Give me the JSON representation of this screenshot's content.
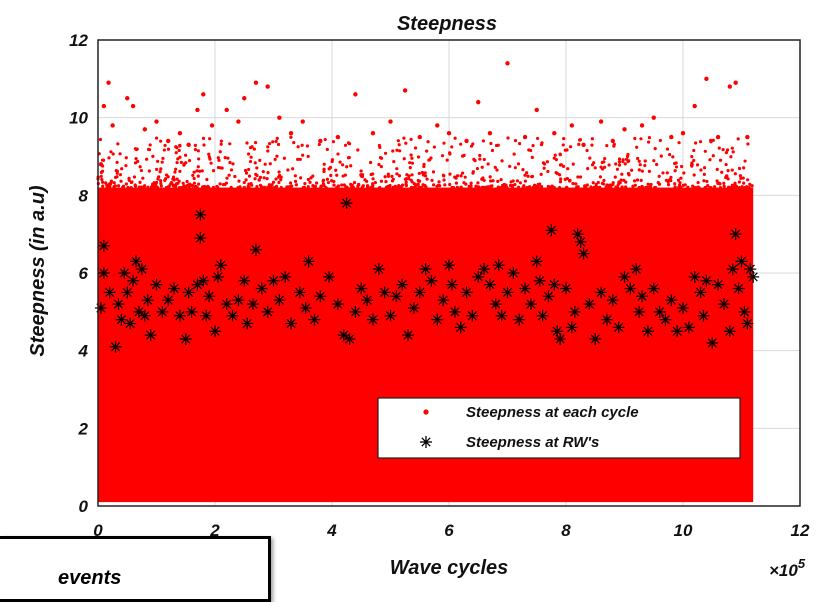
{
  "chart_data": {
    "type": "scatter",
    "title": "Steepness",
    "xlabel": "Wave cycles",
    "ylabel": "Steepness (in a.u)",
    "x_multiplier": "×10",
    "x_multiplier_exponent": "5",
    "xlim": [
      0,
      12
    ],
    "ylim": [
      0,
      12
    ],
    "xticks": [
      "0",
      "2",
      "4",
      "6",
      "8",
      "10",
      "12"
    ],
    "yticks": [
      "0",
      "2",
      "4",
      "6",
      "8",
      "10",
      "12"
    ],
    "grid": true,
    "legend_position": "bottom-right",
    "series": [
      {
        "name": "Steepness at each cycle",
        "marker": "dot",
        "color": "#ff0000",
        "band": {
          "x_from": 0,
          "x_to": 11.2,
          "y_from": 0.1,
          "y_to": 8.2
        },
        "values": [
          [
            0.05,
            8.8
          ],
          [
            0.1,
            10.3
          ],
          [
            0.18,
            10.9
          ],
          [
            0.25,
            9.8
          ],
          [
            0.5,
            10.5
          ],
          [
            0.6,
            10.3
          ],
          [
            0.8,
            9.7
          ],
          [
            1.0,
            9.9
          ],
          [
            1.2,
            9.4
          ],
          [
            1.4,
            9.6
          ],
          [
            1.55,
            9.3
          ],
          [
            1.7,
            10.2
          ],
          [
            1.8,
            10.6
          ],
          [
            1.95,
            9.8
          ],
          [
            2.2,
            10.2
          ],
          [
            2.4,
            9.9
          ],
          [
            2.5,
            10.5
          ],
          [
            2.7,
            10.9
          ],
          [
            2.9,
            10.8
          ],
          [
            3.1,
            10.0
          ],
          [
            3.3,
            9.6
          ],
          [
            3.5,
            9.9
          ],
          [
            3.8,
            9.4
          ],
          [
            4.1,
            9.5
          ],
          [
            4.4,
            10.6
          ],
          [
            4.7,
            9.6
          ],
          [
            5.0,
            9.9
          ],
          [
            5.25,
            10.7
          ],
          [
            5.5,
            9.5
          ],
          [
            5.8,
            9.8
          ],
          [
            6.0,
            9.6
          ],
          [
            6.3,
            9.4
          ],
          [
            6.5,
            10.4
          ],
          [
            6.7,
            9.6
          ],
          [
            7.0,
            11.4
          ],
          [
            7.3,
            9.5
          ],
          [
            7.5,
            10.2
          ],
          [
            7.8,
            9.6
          ],
          [
            8.1,
            9.8
          ],
          [
            8.3,
            9.3
          ],
          [
            8.6,
            9.9
          ],
          [
            8.8,
            9.4
          ],
          [
            9.0,
            9.7
          ],
          [
            9.3,
            9.8
          ],
          [
            9.5,
            10.0
          ],
          [
            9.8,
            9.5
          ],
          [
            10.0,
            9.6
          ],
          [
            10.2,
            10.3
          ],
          [
            10.4,
            11.0
          ],
          [
            10.6,
            9.5
          ],
          [
            10.8,
            10.8
          ],
          [
            10.9,
            10.9
          ],
          [
            11.1,
            9.5
          ]
        ]
      },
      {
        "name": "Steepness at RW's",
        "marker": "asterisk",
        "color": "#000000",
        "values": [
          [
            0.05,
            5.1
          ],
          [
            0.1,
            6.7
          ],
          [
            0.1,
            6.0
          ],
          [
            0.2,
            5.5
          ],
          [
            0.3,
            4.1
          ],
          [
            0.35,
            5.2
          ],
          [
            0.4,
            4.8
          ],
          [
            0.45,
            6.0
          ],
          [
            0.5,
            5.5
          ],
          [
            0.55,
            4.7
          ],
          [
            0.6,
            5.8
          ],
          [
            0.65,
            6.3
          ],
          [
            0.7,
            5.0
          ],
          [
            0.75,
            6.1
          ],
          [
            0.8,
            4.9
          ],
          [
            0.85,
            5.3
          ],
          [
            0.9,
            4.4
          ],
          [
            1.0,
            5.7
          ],
          [
            1.1,
            5.0
          ],
          [
            1.2,
            5.3
          ],
          [
            1.3,
            5.6
          ],
          [
            1.4,
            4.9
          ],
          [
            1.5,
            4.3
          ],
          [
            1.55,
            5.5
          ],
          [
            1.6,
            5.0
          ],
          [
            1.7,
            5.7
          ],
          [
            1.75,
            7.5
          ],
          [
            1.75,
            6.9
          ],
          [
            1.8,
            5.8
          ],
          [
            1.85,
            4.9
          ],
          [
            1.9,
            5.4
          ],
          [
            2.0,
            4.5
          ],
          [
            2.05,
            5.9
          ],
          [
            2.1,
            6.2
          ],
          [
            2.2,
            5.2
          ],
          [
            2.3,
            4.9
          ],
          [
            2.4,
            5.3
          ],
          [
            2.5,
            5.8
          ],
          [
            2.55,
            4.7
          ],
          [
            2.65,
            5.2
          ],
          [
            2.7,
            6.6
          ],
          [
            2.8,
            5.6
          ],
          [
            2.9,
            5.0
          ],
          [
            3.0,
            5.8
          ],
          [
            3.1,
            5.3
          ],
          [
            3.2,
            5.9
          ],
          [
            3.3,
            4.7
          ],
          [
            3.45,
            5.5
          ],
          [
            3.55,
            5.1
          ],
          [
            3.6,
            6.3
          ],
          [
            3.7,
            4.8
          ],
          [
            3.8,
            5.4
          ],
          [
            3.95,
            5.9
          ],
          [
            4.1,
            5.2
          ],
          [
            4.2,
            4.4
          ],
          [
            4.25,
            7.8
          ],
          [
            4.3,
            4.3
          ],
          [
            4.4,
            5.0
          ],
          [
            4.5,
            5.6
          ],
          [
            4.6,
            5.3
          ],
          [
            4.7,
            4.8
          ],
          [
            4.8,
            6.1
          ],
          [
            4.9,
            5.5
          ],
          [
            5.0,
            4.9
          ],
          [
            5.1,
            5.4
          ],
          [
            5.2,
            5.7
          ],
          [
            5.3,
            4.4
          ],
          [
            5.4,
            5.1
          ],
          [
            5.5,
            5.5
          ],
          [
            5.6,
            6.1
          ],
          [
            5.7,
            5.8
          ],
          [
            5.8,
            4.8
          ],
          [
            5.9,
            5.3
          ],
          [
            6.0,
            6.2
          ],
          [
            6.05,
            5.7
          ],
          [
            6.1,
            5.0
          ],
          [
            6.2,
            4.6
          ],
          [
            6.3,
            5.5
          ],
          [
            6.4,
            4.9
          ],
          [
            6.5,
            5.9
          ],
          [
            6.6,
            6.1
          ],
          [
            6.7,
            5.7
          ],
          [
            6.8,
            5.2
          ],
          [
            6.85,
            6.2
          ],
          [
            6.9,
            4.9
          ],
          [
            7.0,
            5.5
          ],
          [
            7.1,
            6.0
          ],
          [
            7.2,
            4.8
          ],
          [
            7.3,
            5.6
          ],
          [
            7.4,
            5.2
          ],
          [
            7.5,
            6.3
          ],
          [
            7.55,
            5.8
          ],
          [
            7.6,
            4.9
          ],
          [
            7.7,
            5.4
          ],
          [
            7.75,
            7.1
          ],
          [
            7.8,
            5.7
          ],
          [
            7.85,
            4.5
          ],
          [
            7.9,
            4.3
          ],
          [
            8.0,
            5.6
          ],
          [
            8.1,
            4.6
          ],
          [
            8.15,
            5.0
          ],
          [
            8.2,
            7.0
          ],
          [
            8.25,
            6.8
          ],
          [
            8.3,
            6.5
          ],
          [
            8.4,
            5.2
          ],
          [
            8.5,
            4.3
          ],
          [
            8.6,
            5.5
          ],
          [
            8.7,
            4.8
          ],
          [
            8.8,
            5.3
          ],
          [
            8.9,
            4.6
          ],
          [
            9.0,
            5.9
          ],
          [
            9.1,
            5.6
          ],
          [
            9.2,
            6.1
          ],
          [
            9.25,
            5.0
          ],
          [
            9.3,
            5.4
          ],
          [
            9.4,
            4.5
          ],
          [
            9.5,
            5.6
          ],
          [
            9.6,
            5.0
          ],
          [
            9.7,
            4.8
          ],
          [
            9.8,
            5.3
          ],
          [
            9.9,
            4.5
          ],
          [
            10.0,
            5.1
          ],
          [
            10.1,
            4.6
          ],
          [
            10.2,
            5.9
          ],
          [
            10.3,
            5.5
          ],
          [
            10.35,
            4.9
          ],
          [
            10.4,
            5.8
          ],
          [
            10.5,
            4.2
          ],
          [
            10.6,
            5.7
          ],
          [
            10.7,
            5.2
          ],
          [
            10.8,
            4.5
          ],
          [
            10.85,
            6.1
          ],
          [
            10.9,
            7.0
          ],
          [
            10.95,
            5.6
          ],
          [
            11.0,
            6.3
          ],
          [
            11.05,
            5.0
          ],
          [
            11.1,
            4.7
          ],
          [
            11.15,
            6.1
          ],
          [
            11.2,
            5.9
          ]
        ]
      }
    ]
  },
  "overlay": {
    "text": "events"
  }
}
